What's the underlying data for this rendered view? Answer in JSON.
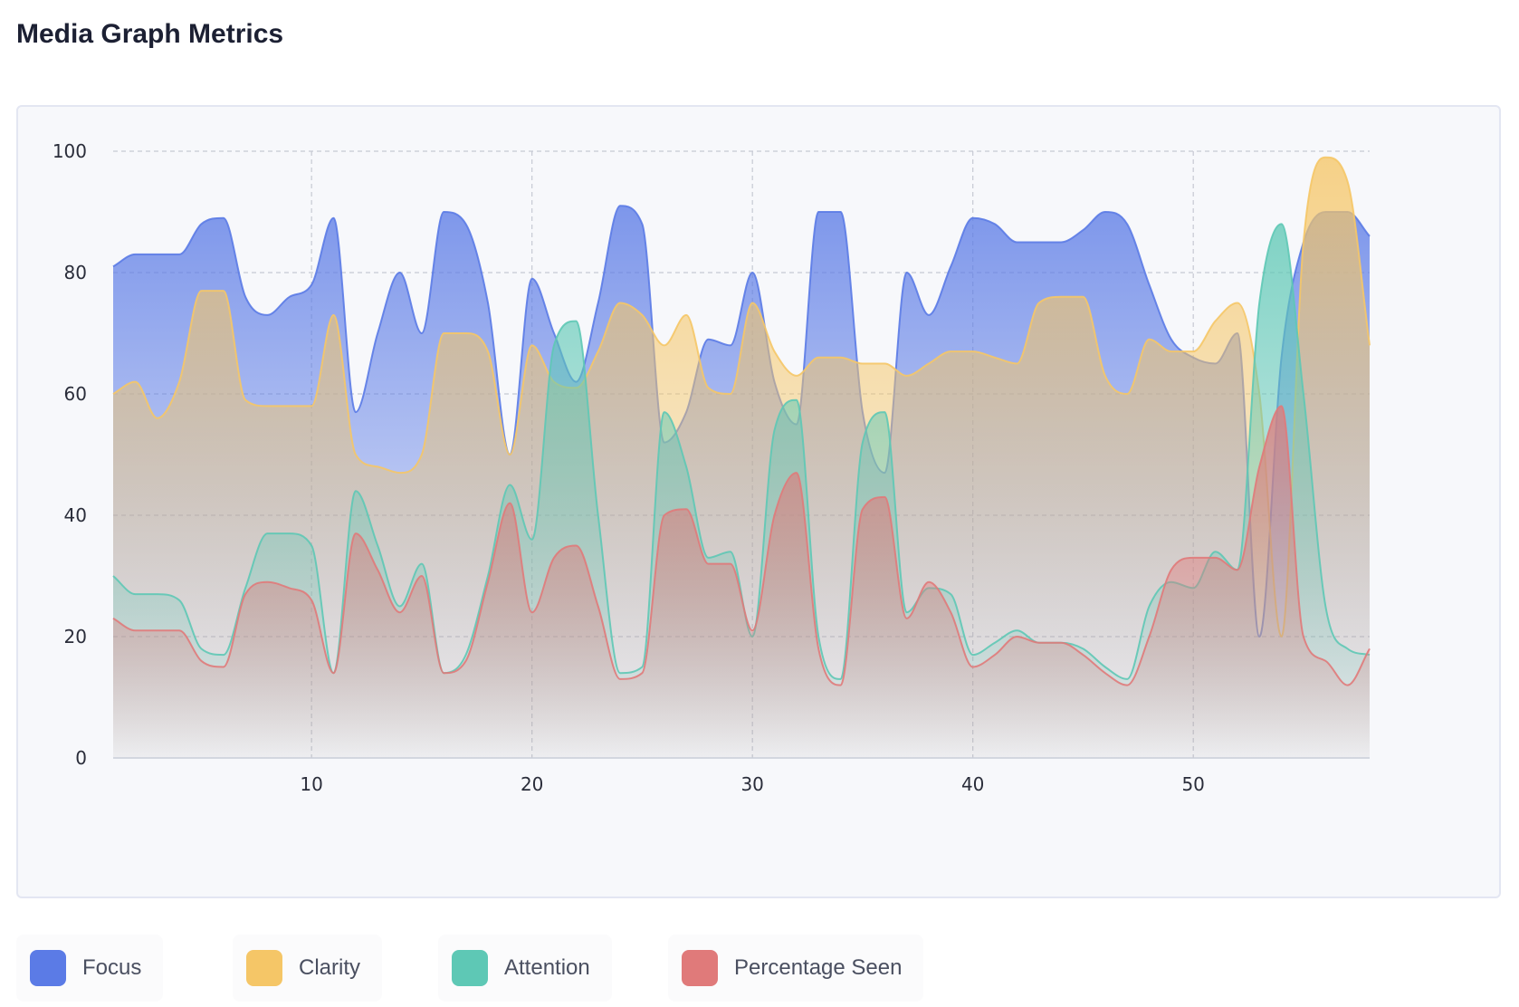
{
  "page": {
    "title": "Media Graph Metrics"
  },
  "chart_data": {
    "type": "area",
    "title": "Media Graph Metrics",
    "xlabel": "",
    "ylabel": "",
    "xlim": [
      1,
      58
    ],
    "ylim": [
      0,
      100
    ],
    "x_ticks": [
      10,
      20,
      30,
      40,
      50
    ],
    "y_ticks": [
      0,
      20,
      40,
      60,
      80,
      100
    ],
    "grid": true,
    "legend_position": "bottom-left",
    "x": [
      1,
      2,
      3,
      4,
      5,
      6,
      7,
      8,
      9,
      10,
      11,
      12,
      13,
      14,
      15,
      16,
      17,
      18,
      19,
      20,
      21,
      22,
      23,
      24,
      25,
      26,
      27,
      28,
      29,
      30,
      31,
      32,
      33,
      34,
      35,
      36,
      37,
      38,
      39,
      40,
      41,
      42,
      43,
      44,
      45,
      46,
      47,
      48,
      49,
      50,
      51,
      52,
      53,
      54,
      55,
      56,
      57,
      58
    ],
    "series": [
      {
        "name": "Focus",
        "color": "#5b7be6",
        "values": [
          81,
          83,
          83,
          83,
          88,
          89,
          76,
          73,
          76,
          78,
          89,
          57,
          70,
          80,
          70,
          90,
          88,
          75,
          50,
          79,
          70,
          62,
          75,
          91,
          88,
          52,
          57,
          69,
          68,
          80,
          62,
          55,
          90,
          90,
          57,
          47,
          80,
          73,
          81,
          89,
          88,
          85,
          85,
          85,
          87,
          90,
          88,
          78,
          69,
          66,
          65,
          70,
          20,
          66,
          85,
          90,
          90,
          86
        ]
      },
      {
        "name": "Clarity",
        "color": "#f5c667",
        "values": [
          60,
          62,
          56,
          62,
          77,
          77,
          59,
          58,
          58,
          58,
          73,
          50,
          48,
          47,
          50,
          70,
          70,
          67,
          50,
          68,
          62,
          61,
          67,
          75,
          73,
          68,
          73,
          61,
          60,
          75,
          67,
          63,
          66,
          66,
          65,
          65,
          63,
          65,
          67,
          67,
          66,
          65,
          75,
          76,
          76,
          63,
          60,
          69,
          67,
          67,
          72,
          75,
          60,
          20,
          85,
          99,
          95,
          68
        ]
      },
      {
        "name": "Attention",
        "color": "#5ec8b5",
        "values": [
          30,
          27,
          27,
          26,
          18,
          17,
          28,
          37,
          37,
          35,
          14,
          44,
          35,
          25,
          32,
          14,
          17,
          30,
          45,
          36,
          68,
          72,
          40,
          14,
          15,
          57,
          48,
          33,
          34,
          20,
          54,
          59,
          20,
          13,
          52,
          57,
          24,
          28,
          27,
          17,
          19,
          21,
          19,
          19,
          18,
          15,
          13,
          25,
          29,
          28,
          34,
          31,
          75,
          88,
          60,
          25,
          18,
          17
        ]
      },
      {
        "name": "Percentage Seen",
        "color": "#e07a7a",
        "values": [
          23,
          21,
          21,
          21,
          16,
          15,
          27,
          29,
          28,
          26,
          14,
          37,
          31,
          24,
          30,
          14,
          16,
          29,
          42,
          24,
          33,
          35,
          25,
          13,
          14,
          40,
          41,
          32,
          32,
          21,
          40,
          47,
          18,
          12,
          41,
          43,
          23,
          29,
          24,
          15,
          17,
          20,
          19,
          19,
          17,
          14,
          12,
          20,
          31,
          33,
          33,
          31,
          48,
          58,
          20,
          16,
          12,
          18
        ]
      }
    ]
  },
  "legend": {
    "items": [
      {
        "label": "Focus",
        "color": "#5b7be6"
      },
      {
        "label": "Clarity",
        "color": "#f5c667"
      },
      {
        "label": "Attention",
        "color": "#5ec8b5"
      },
      {
        "label": "Percentage Seen",
        "color": "#e07a7a"
      }
    ]
  }
}
